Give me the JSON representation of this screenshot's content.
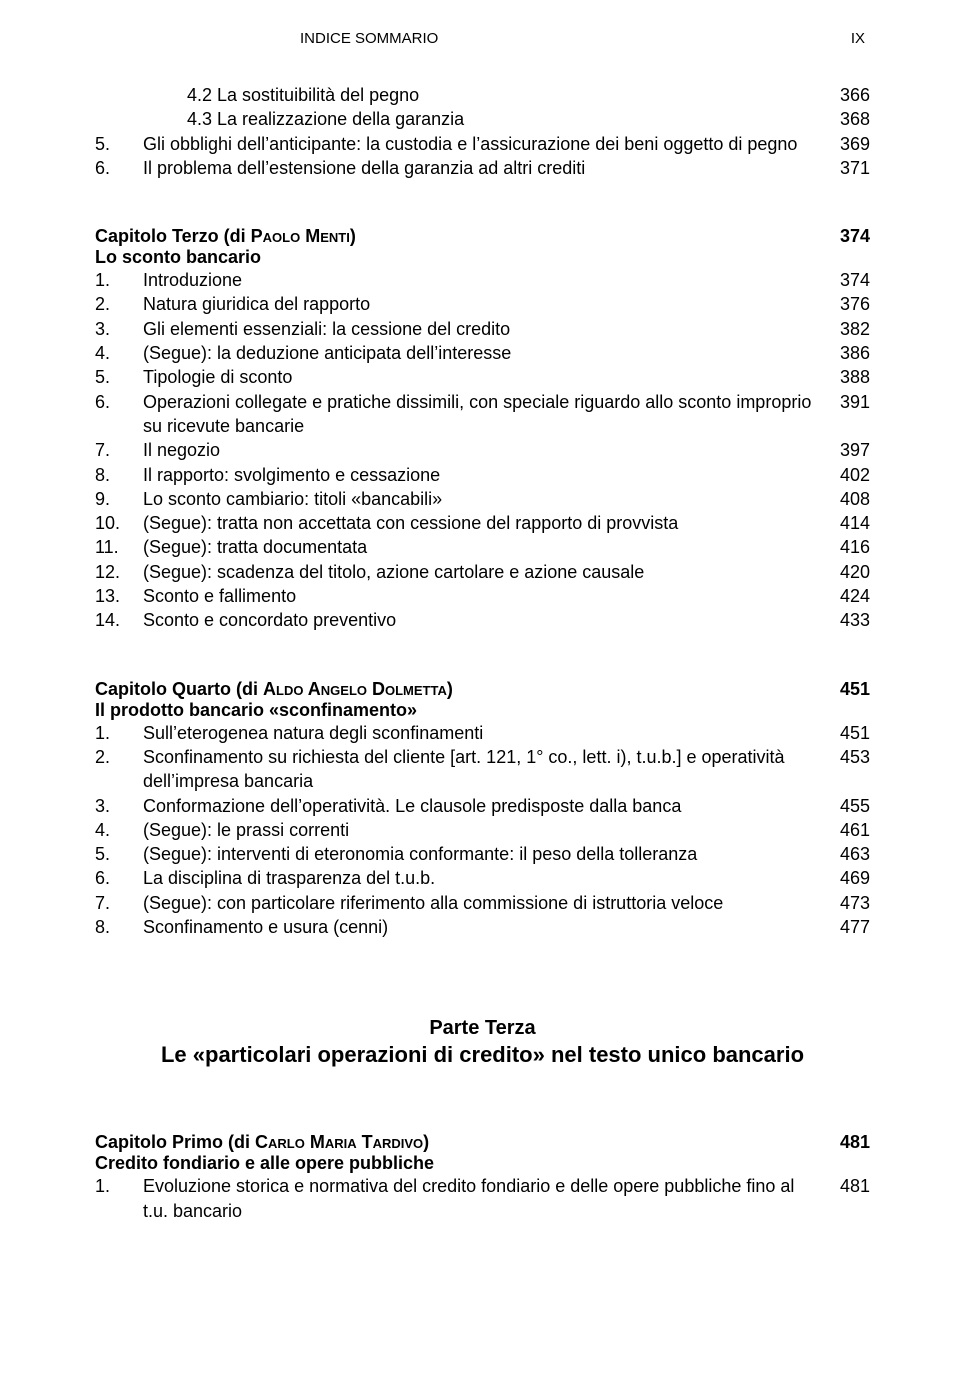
{
  "header": {
    "title": "INDICE SOMMARIO",
    "pagenum": "IX"
  },
  "block_a": {
    "items": [
      {
        "num": "",
        "indent": 2,
        "text": "4.2 La sostituibilità del pegno",
        "page": "366"
      },
      {
        "num": "",
        "indent": 2,
        "text": "4.3 La realizzazione della garanzia",
        "page": "368"
      },
      {
        "num": "5.",
        "indent": 1,
        "text": "Gli obblighi dell’anticipante: la custodia e l’assicurazione dei beni oggetto di pegno",
        "page": "369"
      },
      {
        "num": "6.",
        "indent": 1,
        "text": "Il problema dell’estensione della garanzia ad altri crediti",
        "page": "371"
      }
    ]
  },
  "cap_terzo": {
    "title_pre": "Capitolo Terzo (di ",
    "author": "Paolo Menti",
    "title_post": ")",
    "page": "374",
    "subtitle": "Lo sconto bancario",
    "items": [
      {
        "num": "1.",
        "text": "Introduzione",
        "page": "374"
      },
      {
        "num": "2.",
        "text": "Natura giuridica del rapporto",
        "page": "376"
      },
      {
        "num": "3.",
        "text": "Gli elementi essenziali: la cessione del credito",
        "page": "382"
      },
      {
        "num": "4.",
        "text": "(Segue): la deduzione anticipata dell’interesse",
        "page": "386"
      },
      {
        "num": "5.",
        "text": "Tipologie di sconto",
        "page": "388"
      },
      {
        "num": "6.",
        "text": "Operazioni collegate e pratiche dissimili, con speciale riguardo allo sconto improprio su ricevute bancarie",
        "page": "391"
      },
      {
        "num": "7.",
        "text": "Il negozio",
        "page": "397"
      },
      {
        "num": "8.",
        "text": "Il rapporto: svolgimento e cessazione",
        "page": "402"
      },
      {
        "num": "9.",
        "text": "Lo sconto cambiario: titoli «bancabili»",
        "page": "408"
      },
      {
        "num": "10.",
        "text": "(Segue): tratta non accettata con cessione del rapporto di provvista",
        "page": "414"
      },
      {
        "num": "11.",
        "text": "(Segue): tratta documentata",
        "page": "416"
      },
      {
        "num": "12.",
        "text": "(Segue): scadenza del titolo, azione cartolare e azione causale",
        "page": "420"
      },
      {
        "num": "13.",
        "text": "Sconto e fallimento",
        "page": "424"
      },
      {
        "num": "14.",
        "text": "Sconto e concordato preventivo",
        "page": "433"
      }
    ]
  },
  "cap_quarto": {
    "title_pre": "Capitolo Quarto (di ",
    "author": "Aldo Angelo Dolmetta",
    "title_post": ")",
    "page": "451",
    "subtitle": "Il prodotto bancario «sconfinamento»",
    "items": [
      {
        "num": "1.",
        "text": "Sull’eterogenea natura degli sconfinamenti",
        "page": "451"
      },
      {
        "num": "2.",
        "text": "Sconfinamento su richiesta del cliente [art. 121, 1° co., lett. i), t.u.b.] e operatività dell’impresa bancaria",
        "page": "453"
      },
      {
        "num": "3.",
        "text": "Conformazione dell’operatività. Le clausole predisposte dalla banca",
        "page": "455"
      },
      {
        "num": "4.",
        "text": "(Segue): le prassi correnti",
        "page": "461"
      },
      {
        "num": "5.",
        "text": "(Segue): interventi di eteronomia conformante: il peso della tolleranza",
        "page": "463"
      },
      {
        "num": "6.",
        "text": "La disciplina di trasparenza del t.u.b.",
        "page": "469"
      },
      {
        "num": "7.",
        "text": "(Segue): con particolare riferimento alla commissione di istruttoria veloce",
        "page": "473"
      },
      {
        "num": "8.",
        "text": "Sconfinamento e usura (cenni)",
        "page": "477"
      }
    ]
  },
  "parte_terza": {
    "title": "Parte Terza",
    "subtitle": "Le «particolari operazioni di credito» nel testo unico bancario"
  },
  "cap_primo": {
    "title_pre": "Capitolo Primo (di ",
    "author": "Carlo Maria Tardivo",
    "title_post": ")",
    "page": "481",
    "subtitle": "Credito fondiario e alle opere pubbliche",
    "items": [
      {
        "num": "1.",
        "text": "Evoluzione storica e normativa del credito fondiario e delle opere pubbliche fino al t.u. bancario",
        "page": "481"
      }
    ]
  }
}
